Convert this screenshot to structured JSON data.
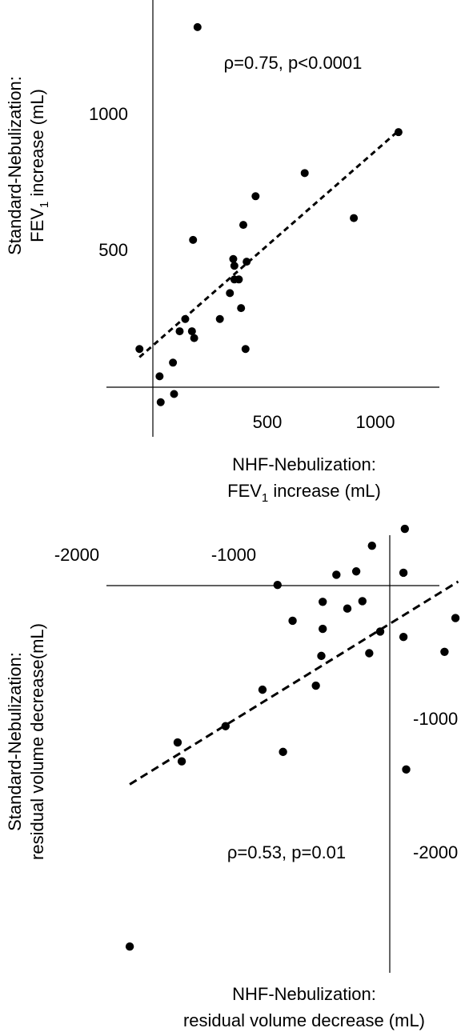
{
  "chart_data": [
    {
      "type": "scatter",
      "xlabel": [
        "NHF-Nebulization:",
        "FEV",
        "1",
        " increase (mL)"
      ],
      "ylabel": [
        "Standard-Nebulization:",
        "FEV",
        "1",
        " increase (mL)"
      ],
      "annotation": "ρ=0.75, p<0.0001",
      "x_ticks": [
        "500",
        "1000"
      ],
      "y_ticks": [
        "500",
        "1000"
      ],
      "xlim": [
        -200,
        1300
      ],
      "ylim": [
        -180,
        1420
      ],
      "trendline": {
        "style": "dashed",
        "x": [
          -60,
          1100
        ],
        "y": [
          110,
          940
        ]
      },
      "points": [
        {
          "x": 200,
          "y": 1320
        },
        {
          "x": 1100,
          "y": 935
        },
        {
          "x": 680,
          "y": 785
        },
        {
          "x": 460,
          "y": 700
        },
        {
          "x": 900,
          "y": 620
        },
        {
          "x": 405,
          "y": 595
        },
        {
          "x": 180,
          "y": 540
        },
        {
          "x": 360,
          "y": 470
        },
        {
          "x": 420,
          "y": 460
        },
        {
          "x": 365,
          "y": 445
        },
        {
          "x": 385,
          "y": 395
        },
        {
          "x": 365,
          "y": 395
        },
        {
          "x": 345,
          "y": 345
        },
        {
          "x": 395,
          "y": 290
        },
        {
          "x": 300,
          "y": 250
        },
        {
          "x": 145,
          "y": 250
        },
        {
          "x": 120,
          "y": 205
        },
        {
          "x": 175,
          "y": 205
        },
        {
          "x": 185,
          "y": 180
        },
        {
          "x": 415,
          "y": 140
        },
        {
          "x": -60,
          "y": 140
        },
        {
          "x": 90,
          "y": 90
        },
        {
          "x": 30,
          "y": 40
        },
        {
          "x": 95,
          "y": -25
        },
        {
          "x": 35,
          "y": -55
        }
      ]
    },
    {
      "type": "scatter",
      "xlabel": [
        "NHF-Nebulization:",
        "residual volume decrease (mL)"
      ],
      "ylabel": [
        "Standard-Nebulization:",
        "residual volume decrease(mL)"
      ],
      "annotation": "ρ=0.53, p=0.01",
      "x_ticks": [
        "-2000",
        "-1000"
      ],
      "y_ticks": [
        "-1000",
        "-2000"
      ],
      "xlim": [
        -2400,
        480
      ],
      "ylim": [
        -2860,
        420
      ],
      "trendline": {
        "style": "dashed",
        "x": [
          -1900,
          500
        ],
        "y": [
          -1470,
          30
        ]
      },
      "points": [
        {
          "x": -1900,
          "y": -2670
        },
        {
          "x": -1550,
          "y": -1160
        },
        {
          "x": -1520,
          "y": -1300
        },
        {
          "x": -1200,
          "y": -1040
        },
        {
          "x": -930,
          "y": -770
        },
        {
          "x": -780,
          "y": -1230
        },
        {
          "x": -820,
          "y": 5
        },
        {
          "x": -710,
          "y": -260
        },
        {
          "x": -540,
          "y": -740
        },
        {
          "x": -500,
          "y": -520
        },
        {
          "x": -490,
          "y": -120
        },
        {
          "x": -490,
          "y": -320
        },
        {
          "x": -390,
          "y": 80
        },
        {
          "x": -310,
          "y": -170
        },
        {
          "x": -245,
          "y": 105
        },
        {
          "x": -200,
          "y": -115
        },
        {
          "x": -150,
          "y": -500
        },
        {
          "x": -130,
          "y": 295
        },
        {
          "x": -70,
          "y": -340
        },
        {
          "x": 110,
          "y": 420
        },
        {
          "x": 100,
          "y": 95
        },
        {
          "x": 100,
          "y": -380
        },
        {
          "x": 120,
          "y": -1360
        },
        {
          "x": 400,
          "y": -490
        },
        {
          "x": 480,
          "y": -240
        }
      ]
    }
  ]
}
